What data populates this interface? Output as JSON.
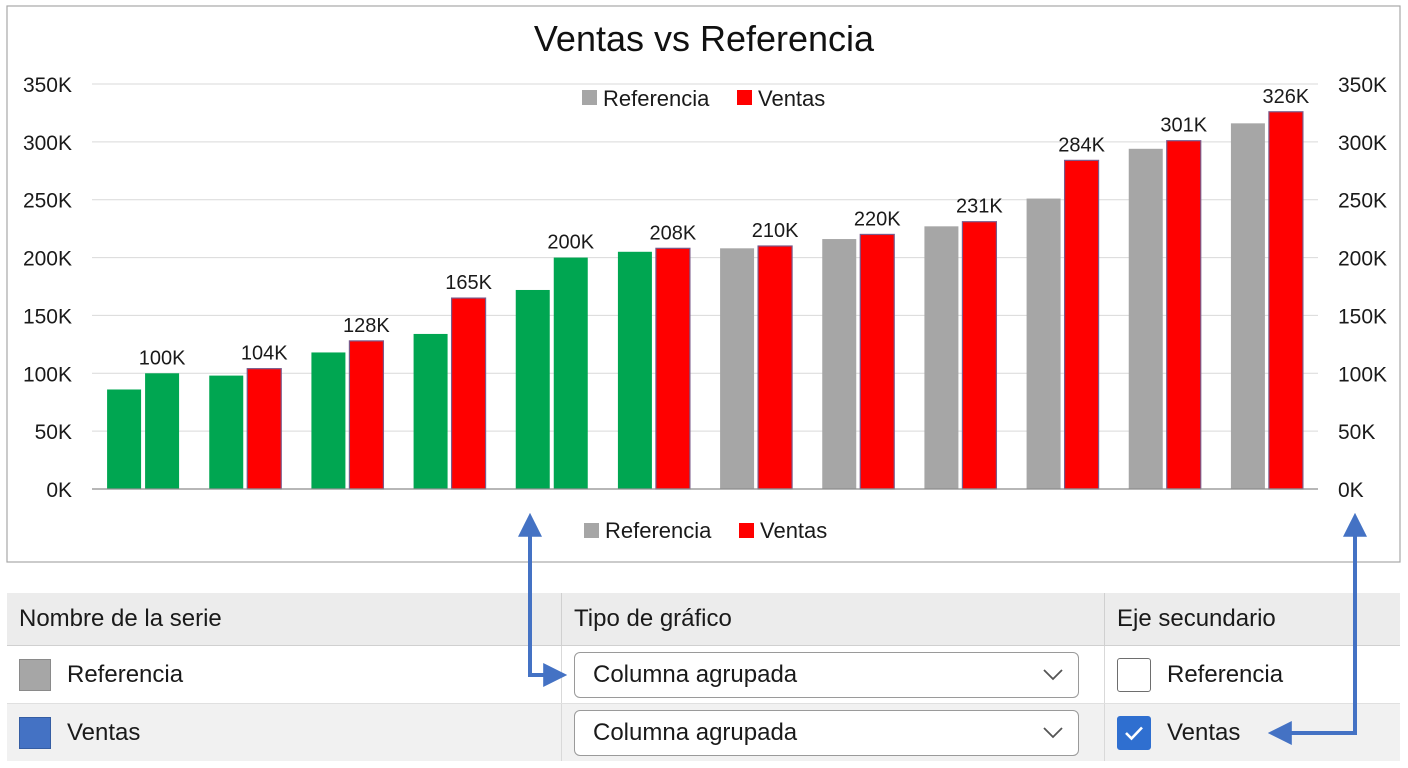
{
  "colors": {
    "reference_gray": "#a6a6a6",
    "sales_red": "#ff0000",
    "highlight_green": "#00a651",
    "ventas_swatch_blue": "#4472c4",
    "arrow_blue": "#4472c4"
  },
  "chart_data": {
    "type": "bar",
    "title": "Ventas vs Referencia",
    "ylim": [
      0,
      350000
    ],
    "y_ticks": [
      0,
      50000,
      100000,
      150000,
      200000,
      250000,
      300000,
      350000
    ],
    "y_tick_labels": [
      "0K",
      "50K",
      "100K",
      "150K",
      "200K",
      "250K",
      "300K",
      "350K"
    ],
    "y2_tick_labels": [
      "0K",
      "50K",
      "100K",
      "150K",
      "200K",
      "250K",
      "300K",
      "350K"
    ],
    "grid": true,
    "legend_entries": [
      "Referencia",
      "Ventas"
    ],
    "legend_placement": "top-center and bottom-center",
    "series": [
      {
        "name": "Referencia",
        "values": [
          86000,
          98000,
          118000,
          134000,
          172000,
          205000,
          208000,
          216000,
          227000,
          251000,
          294000,
          316000
        ]
      },
      {
        "name": "Ventas",
        "values": [
          100000,
          104000,
          128000,
          165000,
          200000,
          208000,
          210000,
          220000,
          231000,
          284000,
          301000,
          326000
        ],
        "data_labels": [
          "100K",
          "104K",
          "128K",
          "165K",
          "200K",
          "208K",
          "210K",
          "220K",
          "231K",
          "284K",
          "301K",
          "326K"
        ]
      }
    ],
    "point_colors": {
      "Referencia": [
        "green",
        "green",
        "green",
        "green",
        "green",
        "green",
        "gray",
        "gray",
        "gray",
        "gray",
        "gray",
        "gray"
      ],
      "Ventas": [
        "green",
        "red",
        "red",
        "red",
        "green",
        "red",
        "red",
        "red",
        "red",
        "red",
        "red",
        "red"
      ]
    }
  },
  "series_table": {
    "headers": [
      "Nombre de la serie",
      "Tipo de gráfico",
      "Eje secundario"
    ],
    "rows": [
      {
        "name": "Referencia",
        "chart_type": "Columna agrupada",
        "secondary_label": "Referencia",
        "secondary_checked": false
      },
      {
        "name": "Ventas",
        "chart_type": "Columna agrupada",
        "secondary_label": "Ventas",
        "secondary_checked": true
      }
    ]
  }
}
